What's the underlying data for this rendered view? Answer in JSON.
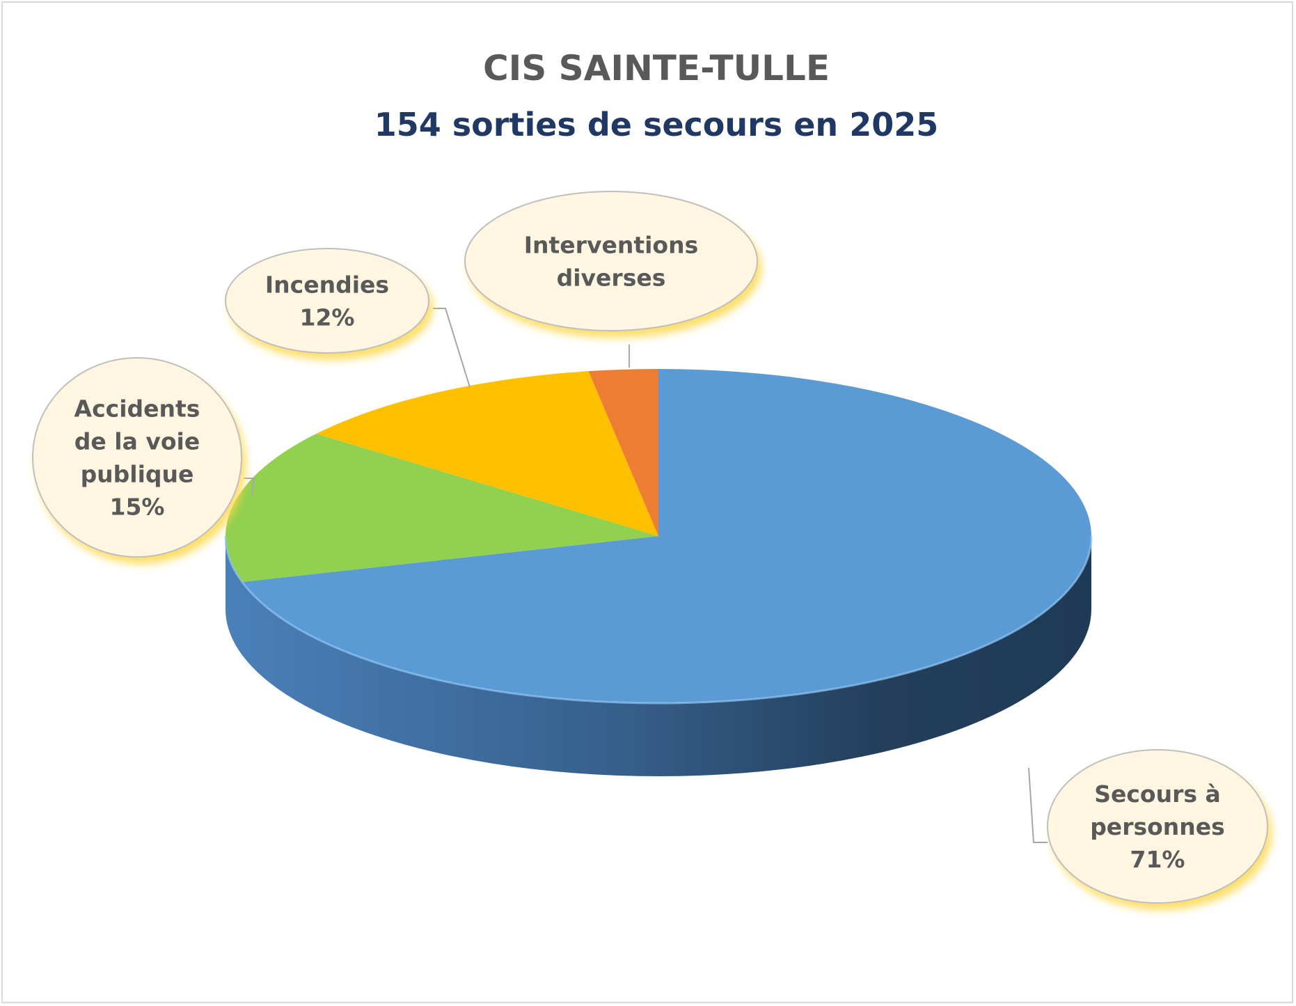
{
  "chart_data": {
    "type": "pie",
    "title": "CIS SAINTE-TULLE",
    "subtitle": "154 sorties de secours en 2025",
    "title_color": "#595959",
    "subtitle_color": "#1f3864",
    "slices": [
      {
        "label_lines": [
          "Secours à",
          "personnes",
          "71%"
        ],
        "value": 71,
        "color": "#5b9bd5"
      },
      {
        "label_lines": [
          "Accidents",
          "de la voie",
          "publique",
          "15%"
        ],
        "value": 15,
        "color": "#92d050"
      },
      {
        "label_lines": [
          "Incendies",
          "12%"
        ],
        "value": 12,
        "color": "#ffc000"
      },
      {
        "label_lines": [
          "Interventions",
          "diverses"
        ],
        "value": 2.6,
        "color": "#ed7d31"
      }
    ],
    "label_style": {
      "bubble_fill": "#fff6e1",
      "bubble_stroke": "#bfbfbf",
      "glow": "#ffd84a"
    }
  }
}
